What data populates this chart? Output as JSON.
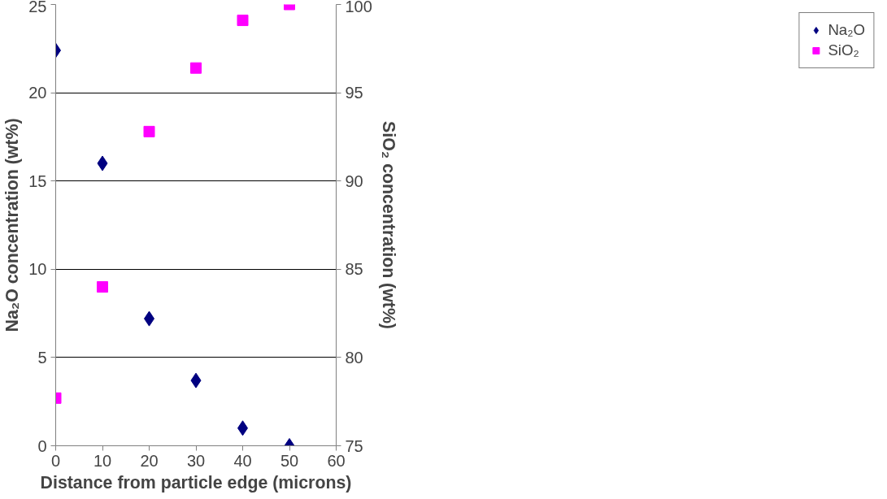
{
  "chart_data": {
    "type": "scatter",
    "xlabel": "Distance from particle edge (microns)",
    "ylabel": "Na₂O concentration (wt%)",
    "y2label": "SiO₂ concentration (wt%)",
    "x": [
      0,
      10,
      20,
      30,
      40,
      50
    ],
    "series": [
      {
        "name": "Na₂O",
        "color": "#000080",
        "marker": "diamond",
        "values": [
          22.4,
          16.0,
          7.2,
          3.7,
          1.0,
          0.0
        ]
      },
      {
        "name": "SiO₂",
        "color": "#ff00ff",
        "marker": "square",
        "axis": "y2",
        "values": [
          77.7,
          84.0,
          92.8,
          96.4,
          99.1,
          100.0
        ]
      }
    ],
    "xlim": [
      0,
      60
    ],
    "xticks": [
      0,
      10,
      20,
      30,
      40,
      50,
      60
    ],
    "ylim": [
      0,
      25
    ],
    "yticks": [
      0,
      5,
      10,
      15,
      20,
      25
    ],
    "y2lim": [
      75,
      100
    ],
    "y2ticks": [
      75,
      80,
      85,
      90,
      95,
      100
    ],
    "grid": "y",
    "legend": "right"
  }
}
